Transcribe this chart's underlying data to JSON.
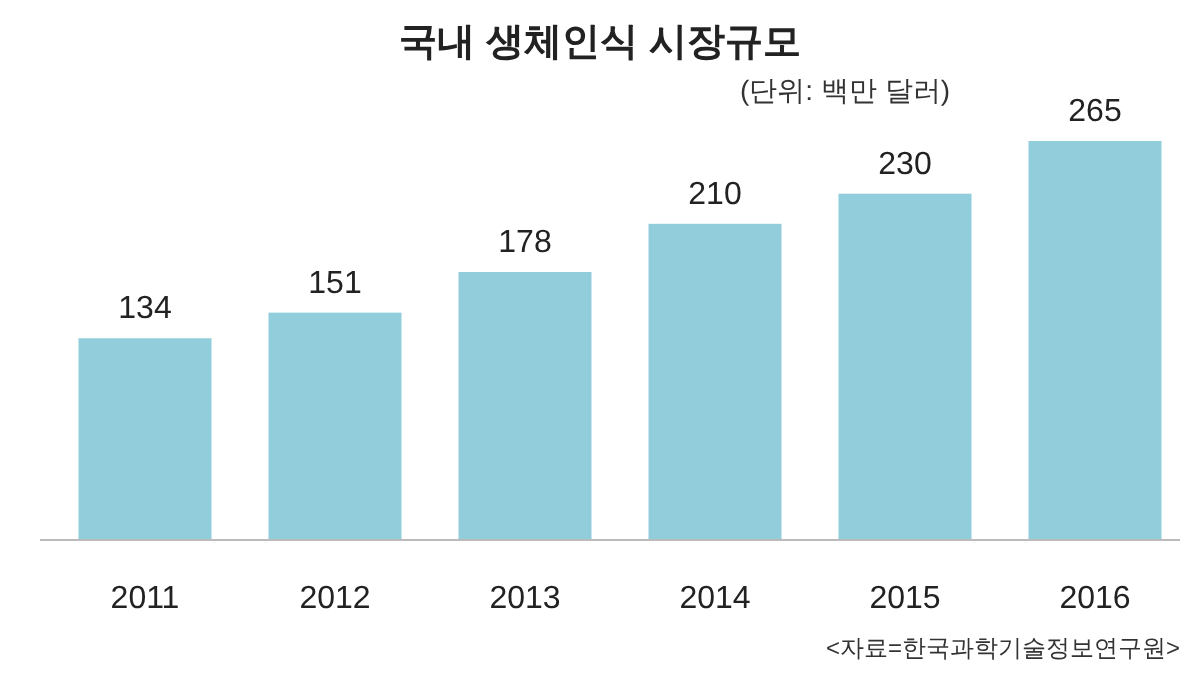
{
  "chart_data": {
    "type": "bar",
    "title": "국내 생체인식 시장규모",
    "subtitle": "(단위: 백만 달러)",
    "categories": [
      "2011",
      "2012",
      "2013",
      "2014",
      "2015",
      "2016"
    ],
    "values": [
      134,
      151,
      178,
      210,
      230,
      265
    ],
    "color": "#92cddc",
    "data_labels": true,
    "annotations": [
      "<자료=한국과학기술정보연구원>"
    ]
  }
}
